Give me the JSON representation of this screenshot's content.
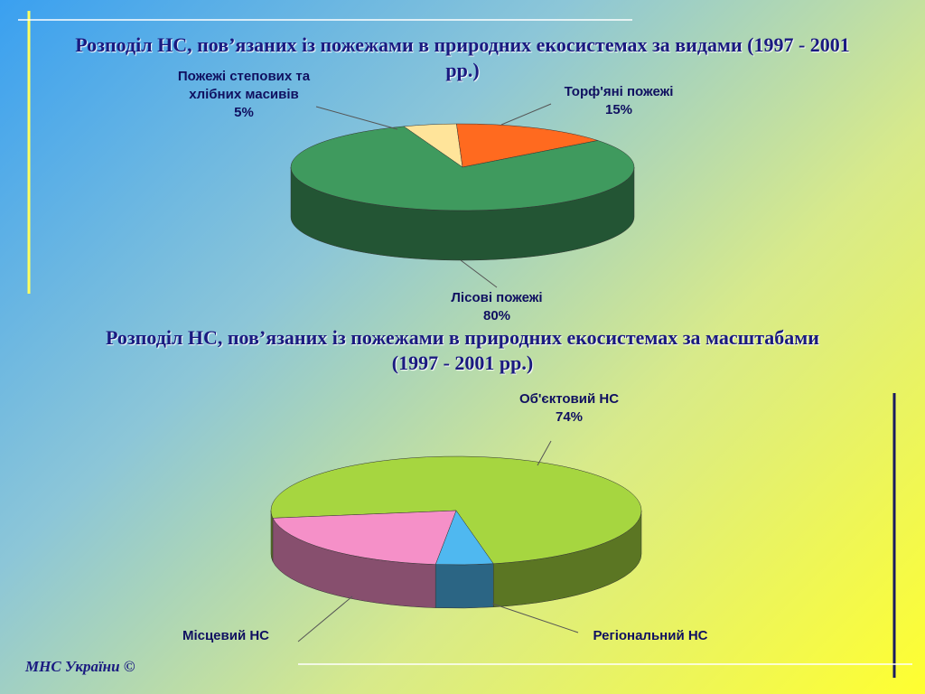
{
  "chart_data": [
    {
      "type": "pie3d",
      "title": "Розподіл НС, пов’язаних із пожежами в природних екосистемах за видами (1997 - 2001 рр.)",
      "categories": [
        "Пожежі степових та хлібних масивів",
        "Торф'яні пожежі",
        "Лісові пожежі"
      ],
      "values": [
        5,
        15,
        80
      ],
      "value_labels": [
        "5%",
        "15%",
        "80%"
      ],
      "colors": [
        "#ffe49a",
        "#ff6a1f",
        "#3f9a5e"
      ]
    },
    {
      "type": "pie3d",
      "title": "Розподіл НС, пов’язаних із пожежами в природних екосистемах за масштабами (1997 - 2001 рр.)",
      "categories": [
        "Об'єктовий НС",
        "Регіональний НС",
        "Місцевий НС"
      ],
      "values": [
        74,
        5,
        21
      ],
      "value_labels": [
        "74%",
        null,
        null
      ],
      "colors": [
        "#a6d640",
        "#4fb8f0",
        "#f590c8"
      ]
    }
  ],
  "footer": "МНС України ©"
}
